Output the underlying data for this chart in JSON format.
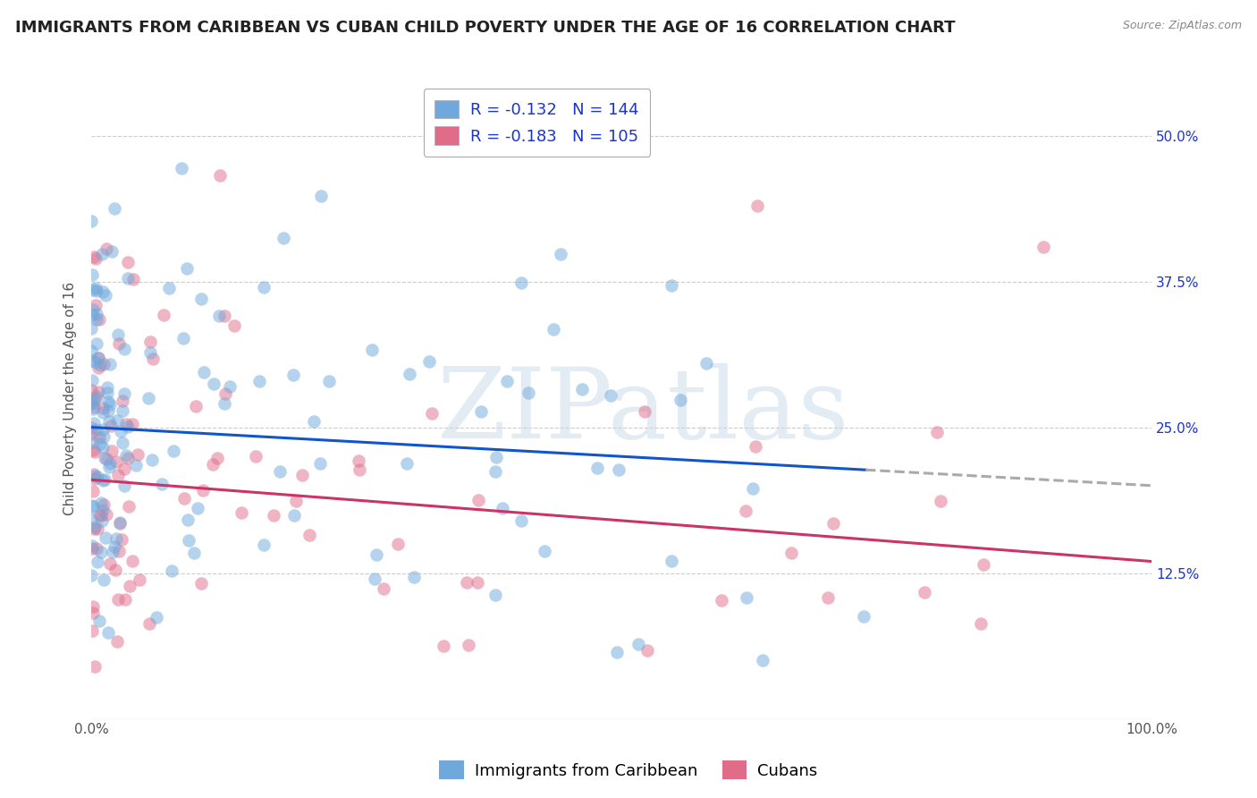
{
  "title": "IMMIGRANTS FROM CARIBBEAN VS CUBAN CHILD POVERTY UNDER THE AGE OF 16 CORRELATION CHART",
  "source": "Source: ZipAtlas.com",
  "ylabel": "Child Poverty Under the Age of 16",
  "x_min": 0.0,
  "x_max": 100.0,
  "y_min": 0.0,
  "y_max": 55.0,
  "y_ticks": [
    0.0,
    12.5,
    25.0,
    37.5,
    50.0
  ],
  "x_tick_labels": [
    "0.0%",
    "100.0%"
  ],
  "y_tick_labels_right": [
    "",
    "12.5%",
    "25.0%",
    "37.5%",
    "50.0%"
  ],
  "series_caribbean": {
    "color": "#6fa8dc",
    "alpha": 0.5,
    "R": -0.132,
    "N": 144,
    "label": "Immigrants from Caribbean",
    "line_color": "#1155cc",
    "line_start_y": 25.0,
    "line_end_y": 20.0
  },
  "series_cuban": {
    "color": "#e06c8a",
    "alpha": 0.5,
    "R": -0.183,
    "N": 105,
    "label": "Cubans",
    "line_color": "#cc3366",
    "line_start_y": 20.5,
    "line_end_y": 13.5
  },
  "legend_R_color": "#1a34cc",
  "watermark_text": "ZIPatlas",
  "watermark_color": "#c8d8e8",
  "watermark_alpha": 0.5,
  "background_color": "#ffffff",
  "grid_color": "#cccccc",
  "grid_style": "--",
  "title_fontsize": 13,
  "axis_label_fontsize": 11,
  "tick_fontsize": 11,
  "legend_fontsize": 13,
  "dashed_line_color": "#aaaaaa",
  "dashed_line_start_x": 73.0
}
